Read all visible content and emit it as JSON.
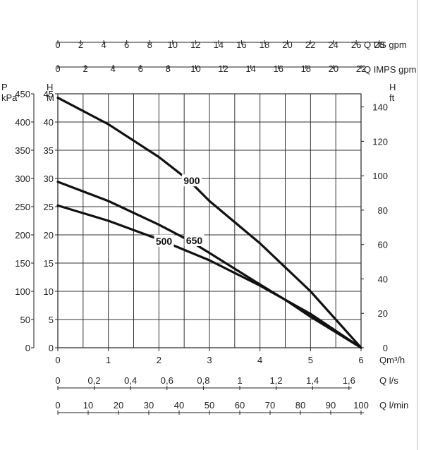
{
  "chart_data": {
    "type": "line",
    "title": "",
    "x": {
      "label": "Qm³/h",
      "range": [
        0,
        6
      ],
      "ticks": [
        "0",
        "1",
        "2",
        "3",
        "4",
        "5",
        "6"
      ]
    },
    "y_left": {
      "label_top": "H",
      "label_unit": "M",
      "range": [
        0,
        45
      ],
      "ticks": [
        "0",
        "5",
        "10",
        "15",
        "20",
        "25",
        "30",
        "35",
        "40",
        "45"
      ]
    },
    "y_pressure": {
      "label_top": "P",
      "label_unit": "kPa",
      "ticks": [
        "0",
        "50",
        "100",
        "150",
        "200",
        "250",
        "300",
        "350",
        "400",
        "450"
      ]
    },
    "y_right": {
      "label_top": "H",
      "label_unit": "ft",
      "ticks": [
        "0",
        "20",
        "40",
        "60",
        "80",
        "100",
        "120",
        "140"
      ]
    },
    "secondary_x_axes": [
      {
        "label": "Q US gpm",
        "ticks": [
          "0",
          "2",
          "4",
          "6",
          "8",
          "10",
          "12",
          "14",
          "16",
          "18",
          "20",
          "22",
          "24",
          "26",
          "28"
        ]
      },
      {
        "label": "Q IMPS gpm",
        "ticks": [
          "0",
          "2",
          "4",
          "6",
          "8",
          "10",
          "12",
          "14",
          "16",
          "18",
          "20",
          "22"
        ]
      },
      {
        "label": "Q l/s",
        "ticks": [
          "0",
          "0,2",
          "0,4",
          "0,6",
          "0,8",
          "1",
          "1,2",
          "1,4",
          "1,6"
        ]
      },
      {
        "label": "Q l/min",
        "ticks": [
          "0",
          "10",
          "20",
          "30",
          "40",
          "50",
          "60",
          "70",
          "80",
          "90",
          "100"
        ]
      }
    ],
    "grid": true,
    "series": [
      {
        "name": "900",
        "x": [
          0,
          1,
          2,
          2.6,
          3,
          4,
          5,
          6
        ],
        "y": [
          44.3,
          39.6,
          33.8,
          29.6,
          26.0,
          18.5,
          10.0,
          0
        ]
      },
      {
        "name": "650",
        "x": [
          0,
          1,
          2,
          2.6,
          3,
          4,
          4.5,
          5,
          6
        ],
        "y": [
          29.4,
          26.0,
          21.8,
          19.0,
          16.8,
          11.2,
          8.5,
          5.5,
          0
        ]
      },
      {
        "name": "500",
        "x": [
          0,
          1,
          2,
          3,
          4,
          4.5,
          5,
          6
        ],
        "y": [
          25.2,
          22.5,
          19.2,
          15.5,
          11.0,
          8.5,
          6.0,
          0
        ]
      }
    ]
  }
}
